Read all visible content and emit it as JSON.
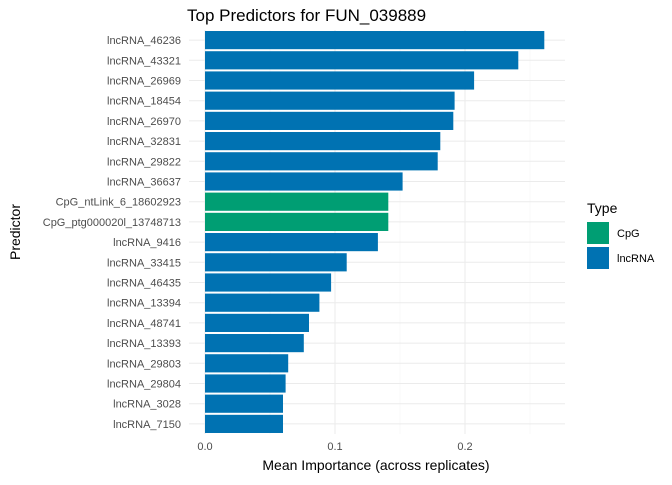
{
  "chart_data": {
    "type": "bar",
    "orientation": "horizontal",
    "title": "Top Predictors for FUN_039889",
    "xlabel": "Mean Importance (across replicates)",
    "ylabel": "Predictor",
    "xlim": [
      0,
      0.27
    ],
    "x_ticks": [
      0.0,
      0.1,
      0.2
    ],
    "x_tick_labels": [
      "0.0",
      "0.1",
      "0.2"
    ],
    "grid": true,
    "legend": {
      "title": "Type",
      "placement": "right",
      "entries": [
        {
          "name": "CpG",
          "color": "#009E73"
        },
        {
          "name": "lncRNA",
          "color": "#0072B2"
        }
      ]
    },
    "categories": [
      "lncRNA_46236",
      "lncRNA_43321",
      "lncRNA_26969",
      "lncRNA_18454",
      "lncRNA_26970",
      "lncRNA_32831",
      "lncRNA_29822",
      "lncRNA_36637",
      "CpG_ntLink_6_18602923",
      "CpG_ptg000020l_13748713",
      "lncRNA_9416",
      "lncRNA_33415",
      "lncRNA_46435",
      "lncRNA_13394",
      "lncRNA_48741",
      "lncRNA_13393",
      "lncRNA_29803",
      "lncRNA_29804",
      "lncRNA_3028",
      "lncRNA_7150"
    ],
    "values": [
      0.261,
      0.241,
      0.207,
      0.192,
      0.191,
      0.181,
      0.179,
      0.152,
      0.141,
      0.141,
      0.133,
      0.109,
      0.097,
      0.088,
      0.08,
      0.076,
      0.064,
      0.062,
      0.06,
      0.06
    ],
    "types": [
      "lncRNA",
      "lncRNA",
      "lncRNA",
      "lncRNA",
      "lncRNA",
      "lncRNA",
      "lncRNA",
      "lncRNA",
      "CpG",
      "CpG",
      "lncRNA",
      "lncRNA",
      "lncRNA",
      "lncRNA",
      "lncRNA",
      "lncRNA",
      "lncRNA",
      "lncRNA",
      "lncRNA",
      "lncRNA"
    ]
  }
}
